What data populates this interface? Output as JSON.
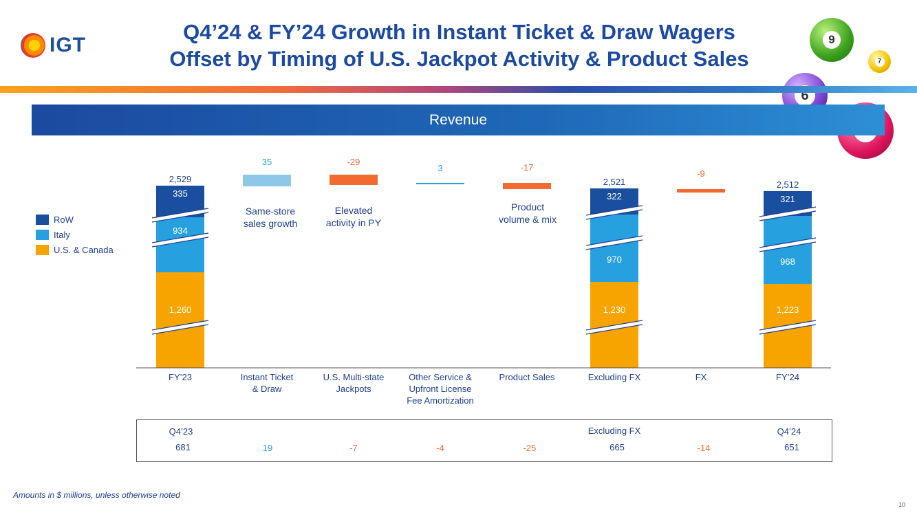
{
  "header": {
    "logo_text": "IGT",
    "title_line1": "Q4’24 & FY’24 Growth in Instant Ticket & Draw Wagers",
    "title_line2": "Offset by Timing of U.S. Jackpot Activity & Product Sales"
  },
  "banner": {
    "label": "Revenue"
  },
  "decor_balls": [
    "9",
    "7",
    "6",
    "4"
  ],
  "colors": {
    "row": "#1a4fa0",
    "italy": "#27a0e0",
    "us_canada": "#f7a400",
    "increase": "#8ec8e8",
    "decrease": "#f26a30",
    "text": "#1f3f8f"
  },
  "legend": [
    {
      "label": "RoW",
      "color": "#1a4fa0"
    },
    {
      "label": "Italy",
      "color": "#27a0e0"
    },
    {
      "label": "U.S. & Canada",
      "color": "#f7a400"
    }
  ],
  "chart_data": {
    "type": "bar",
    "subtype": "waterfall-stacked",
    "title": "Revenue",
    "categories": [
      "FY’23",
      "Instant Ticket\n& Draw",
      "U.S. Multi-state\nJackpots",
      "Other Service &\nUpfront License\nFee Amortization",
      "Product Sales",
      "Excluding FX",
      "FX",
      "FY’24"
    ],
    "category_labels": [
      [
        "FY’23"
      ],
      [
        "Instant Ticket",
        "& Draw"
      ],
      [
        "U.S. Multi-state",
        "Jackpots"
      ],
      [
        "Other Service &",
        "Upfront License",
        "Fee Amortization"
      ],
      [
        "Product Sales"
      ],
      [
        "Excluding FX"
      ],
      [
        "FX"
      ],
      [
        "FY’24"
      ]
    ],
    "totals": [
      {
        "category": "FY’23",
        "total": "2,529",
        "u_s_canada": "1,260",
        "italy": "934",
        "row": "335"
      },
      {
        "category": "Excluding FX",
        "total": "2,521",
        "u_s_canada": "1,230",
        "italy": "970",
        "row": "322"
      },
      {
        "category": "FY’24",
        "total": "2,512",
        "u_s_canada": "1,223",
        "italy": "968",
        "row": "321"
      }
    ],
    "deltas": [
      {
        "category": "Instant Ticket & Draw",
        "value": 35,
        "label": "35",
        "annotation": [
          "Same-store",
          "sales growth"
        ]
      },
      {
        "category": "U.S. Multi-state Jackpots",
        "value": -29,
        "label": "-29",
        "annotation": [
          "Elevated",
          "activity in PY"
        ]
      },
      {
        "category": "Other Service & Upfront License Fee Amortization",
        "value": 3,
        "label": "3",
        "annotation": []
      },
      {
        "category": "Product Sales",
        "value": -17,
        "label": "-17",
        "annotation": [
          "Product",
          "volume & mix"
        ]
      },
      {
        "category": "FX",
        "value": -9,
        "label": "-9",
        "annotation": []
      }
    ],
    "series": [
      {
        "name": "RoW"
      },
      {
        "name": "Italy"
      },
      {
        "name": "U.S. & Canada"
      }
    ],
    "axis_breaks": true,
    "legend_position": "left"
  },
  "quarter_table": {
    "headers": [
      "Q4’23",
      "",
      "",
      "",
      "",
      "Excluding FX",
      "",
      "Q4’24"
    ],
    "values": [
      "681",
      "19",
      "-7",
      "-4",
      "-25",
      "665",
      "-14",
      "651"
    ],
    "value_types": [
      "total",
      "increase",
      "decrease",
      "decrease",
      "decrease",
      "total",
      "decrease",
      "total"
    ]
  },
  "footnote": "Amounts in $ millions, unless otherwise noted",
  "page_number": "10"
}
